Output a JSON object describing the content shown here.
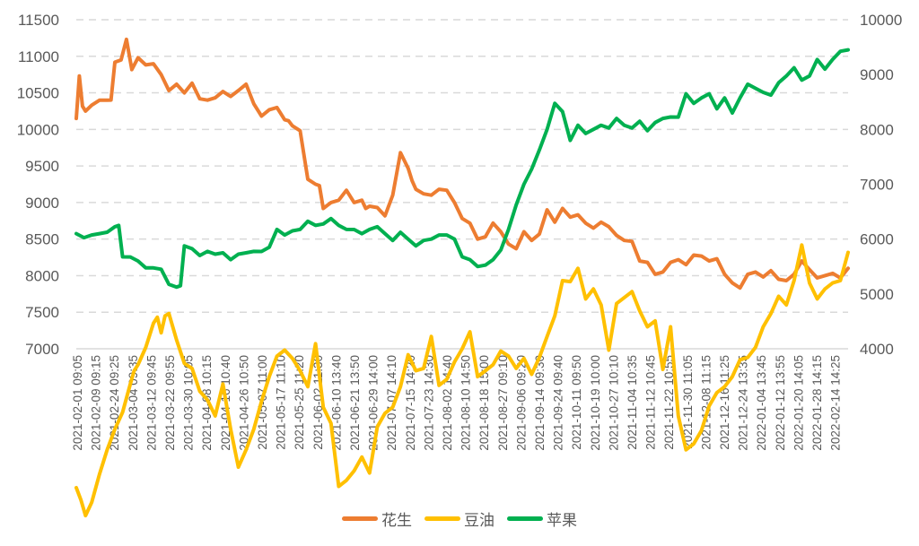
{
  "chart_data": {
    "type": "line",
    "title": "",
    "xlabel": "",
    "ylabel": "",
    "y2label": "",
    "grid": true,
    "legend_position": "bottom",
    "left_axis": {
      "min": 7000,
      "max": 11500,
      "step": 500,
      "ticks": [
        "11500",
        "11000",
        "10500",
        "10000",
        "9500",
        "9000",
        "8500",
        "8000",
        "7500",
        "7000"
      ]
    },
    "right_axis": {
      "min": 4000,
      "max": 10000,
      "step": 1000,
      "ticks": [
        "10000",
        "9000",
        "8000",
        "7000",
        "6000",
        "5000",
        "4000"
      ]
    },
    "x_tick_labels": [
      "2021-02-01 09:05",
      "2021-02-09 09:15",
      "2021-02-24 09:25",
      "2021-03-04 09:35",
      "2021-03-12 09:45",
      "2021-03-22 09:55",
      "2021-03-30 10:05",
      "2021-04-08 10:15",
      "2021-04-16 10:40",
      "2021-04-26 10:50",
      "2021-05-07 11:00",
      "2021-05-17 11:10",
      "2021-05-25 11:20",
      "2021-06-02 11:30",
      "2021-06-10 13:40",
      "2021-06-21 13:50",
      "2021-06-29 14:00",
      "2021-07-07 14:10",
      "2021-07-15 14:20",
      "2021-07-23 14:30",
      "2021-08-02 14:40",
      "2021-08-10 14:50",
      "2021-08-18 15:00",
      "2021-08-27 09:10",
      "2021-09-06 09:20",
      "2021-09-14 09:30",
      "2021-09-24 09:40",
      "2021-10-11 09:50",
      "2021-10-19 10:00",
      "2021-10-27 10:10",
      "2021-11-04 10:35",
      "2021-11-12 10:45",
      "2021-11-22 10:55",
      "2021-11-30 11:05",
      "2021-12-08 11:15",
      "2021-12-16 11:25",
      "2021-12-24 13:35",
      "2022-01-04 13:45",
      "2022-01-12 13:55",
      "2022-01-20 14:05",
      "2022-01-28 14:15",
      "2022-02-14 14:25"
    ],
    "series": [
      {
        "name": "花生",
        "axis": "left",
        "color": "#ED7D31",
        "x": [
          0,
          0.004,
          0.008,
          0.012,
          0.02,
          0.03,
          0.04,
          0.045,
          0.05,
          0.058,
          0.065,
          0.072,
          0.08,
          0.09,
          0.1,
          0.11,
          0.12,
          0.13,
          0.14,
          0.15,
          0.16,
          0.17,
          0.18,
          0.19,
          0.2,
          0.21,
          0.22,
          0.23,
          0.24,
          0.25,
          0.26,
          0.27,
          0.275,
          0.28,
          0.29,
          0.3,
          0.31,
          0.315,
          0.32,
          0.33,
          0.34,
          0.35,
          0.36,
          0.37,
          0.375,
          0.38,
          0.39,
          0.4,
          0.41,
          0.42,
          0.43,
          0.435,
          0.44,
          0.45,
          0.46,
          0.47,
          0.48,
          0.49,
          0.5,
          0.51,
          0.52,
          0.53,
          0.54,
          0.55,
          0.56,
          0.57,
          0.58,
          0.59,
          0.6,
          0.61,
          0.62,
          0.63,
          0.64,
          0.65,
          0.66,
          0.67,
          0.68,
          0.69,
          0.7,
          0.71,
          0.72,
          0.73,
          0.74,
          0.75,
          0.76,
          0.77,
          0.78,
          0.79,
          0.8,
          0.81,
          0.82,
          0.83,
          0.84,
          0.85,
          0.86,
          0.87,
          0.88,
          0.89,
          0.9,
          0.91,
          0.92,
          0.93,
          0.94,
          0.95,
          0.96,
          0.97,
          0.98,
          0.99,
          1.0
        ],
        "values": [
          10150,
          10750,
          10300,
          10250,
          10350,
          10380,
          10400,
          10420,
          10900,
          10950,
          11250,
          10800,
          10980,
          10900,
          10880,
          10750,
          10550,
          10600,
          10500,
          10650,
          10400,
          10400,
          10450,
          10500,
          10450,
          10550,
          10600,
          10350,
          10200,
          10250,
          10300,
          10150,
          10100,
          10050,
          10000,
          9300,
          9250,
          9250,
          8900,
          9000,
          9050,
          9150,
          9000,
          9050,
          8900,
          8950,
          8950,
          8800,
          9100,
          9700,
          9450,
          9300,
          9200,
          9100,
          9100,
          9200,
          9150,
          9000,
          8800,
          8700,
          8500,
          8550,
          8700,
          8600,
          8450,
          8350,
          8600,
          8500,
          8550,
          8900,
          8750,
          8900,
          8800,
          8850,
          8700,
          8650,
          8750,
          8650,
          8550,
          8500,
          8450,
          8200,
          8200,
          8000,
          8050,
          8200,
          8200,
          8150,
          8300,
          8250,
          8200,
          8250,
          8000,
          7900,
          7850,
          8000,
          8050,
          8000,
          8050,
          7950,
          7950,
          8000,
          8200,
          8100,
          7950,
          8000,
          8050,
          7950,
          8100
        ]
      },
      {
        "name": "豆油",
        "axis": "left",
        "color": "#FFC000",
        "x": [
          0,
          0.006,
          0.012,
          0.02,
          0.03,
          0.04,
          0.05,
          0.06,
          0.07,
          0.075,
          0.08,
          0.09,
          0.1,
          0.105,
          0.11,
          0.115,
          0.12,
          0.13,
          0.14,
          0.15,
          0.16,
          0.17,
          0.18,
          0.19,
          0.2,
          0.21,
          0.22,
          0.23,
          0.24,
          0.25,
          0.26,
          0.27,
          0.28,
          0.29,
          0.3,
          0.31,
          0.32,
          0.33,
          0.34,
          0.35,
          0.36,
          0.37,
          0.38,
          0.39,
          0.4,
          0.41,
          0.42,
          0.43,
          0.44,
          0.45,
          0.46,
          0.47,
          0.48,
          0.49,
          0.5,
          0.51,
          0.52,
          0.53,
          0.54,
          0.55,
          0.56,
          0.57,
          0.58,
          0.59,
          0.6,
          0.61,
          0.62,
          0.63,
          0.64,
          0.65,
          0.66,
          0.67,
          0.68,
          0.69,
          0.7,
          0.71,
          0.72,
          0.73,
          0.74,
          0.75,
          0.76,
          0.77,
          0.78,
          0.79,
          0.8,
          0.81,
          0.82,
          0.83,
          0.84,
          0.85,
          0.86,
          0.87,
          0.88,
          0.89,
          0.9,
          0.91,
          0.92,
          0.93,
          0.94,
          0.95,
          0.96,
          0.97,
          0.98,
          0.99,
          1.0
        ],
        "values": [
          5100,
          4950,
          4700,
          4900,
          5300,
          5600,
          5900,
          6150,
          6500,
          6700,
          6800,
          7000,
          7350,
          7450,
          7200,
          7450,
          7500,
          7100,
          6800,
          6750,
          6400,
          6300,
          6100,
          6500,
          5900,
          5400,
          5600,
          5900,
          6300,
          6600,
          6900,
          7000,
          6850,
          6700,
          6500,
          7050,
          6200,
          6000,
          5100,
          5200,
          5350,
          5500,
          5300,
          5950,
          6100,
          6200,
          6500,
          6900,
          6700,
          6750,
          7150,
          6500,
          6600,
          6800,
          7000,
          7250,
          6600,
          6700,
          6800,
          6950,
          6900,
          6750,
          6850,
          6650,
          6900,
          7150,
          7450,
          7950,
          7900,
          8100,
          7700,
          7800,
          7600,
          7000,
          7600,
          7700,
          7800,
          7500,
          7300,
          7400,
          6700,
          7300,
          6100,
          5600,
          5700,
          5900,
          6200,
          6400,
          6500,
          6600,
          6850,
          6900,
          7000,
          7300,
          7500,
          7700,
          7600,
          7950,
          8400,
          7900,
          7700,
          7800,
          7900,
          7950,
          8300
        ]
      },
      {
        "name": "苹果",
        "axis": "right",
        "color": "#00B050",
        "x": [
          0,
          0.01,
          0.02,
          0.03,
          0.04,
          0.05,
          0.055,
          0.06,
          0.07,
          0.08,
          0.09,
          0.1,
          0.11,
          0.12,
          0.13,
          0.135,
          0.14,
          0.15,
          0.16,
          0.17,
          0.18,
          0.19,
          0.2,
          0.21,
          0.22,
          0.23,
          0.24,
          0.25,
          0.26,
          0.27,
          0.28,
          0.29,
          0.3,
          0.31,
          0.32,
          0.33,
          0.34,
          0.35,
          0.36,
          0.37,
          0.38,
          0.39,
          0.4,
          0.41,
          0.42,
          0.43,
          0.44,
          0.45,
          0.46,
          0.47,
          0.48,
          0.49,
          0.5,
          0.51,
          0.52,
          0.53,
          0.54,
          0.55,
          0.56,
          0.57,
          0.58,
          0.59,
          0.6,
          0.61,
          0.62,
          0.63,
          0.64,
          0.65,
          0.66,
          0.67,
          0.68,
          0.69,
          0.7,
          0.71,
          0.72,
          0.73,
          0.74,
          0.75,
          0.76,
          0.77,
          0.78,
          0.79,
          0.8,
          0.81,
          0.82,
          0.83,
          0.84,
          0.85,
          0.86,
          0.87,
          0.88,
          0.89,
          0.9,
          0.91,
          0.92,
          0.93,
          0.94,
          0.95,
          0.96,
          0.97,
          0.98,
          0.99,
          1.0
        ],
        "values": [
          6100,
          6050,
          6050,
          6100,
          6150,
          6200,
          6250,
          5700,
          5650,
          5600,
          5500,
          5450,
          5450,
          5200,
          5100,
          5150,
          5900,
          5800,
          5700,
          5800,
          5700,
          5750,
          5650,
          5700,
          5750,
          5800,
          5750,
          5850,
          6200,
          6050,
          6150,
          6200,
          6300,
          6250,
          6300,
          6350,
          6250,
          6200,
          6150,
          6100,
          6200,
          6200,
          6100,
          6000,
          6100,
          6000,
          5900,
          5950,
          6000,
          6100,
          6050,
          6000,
          5700,
          5600,
          5500,
          5550,
          5600,
          5800,
          6200,
          6600,
          7000,
          7300,
          7600,
          8000,
          8500,
          8300,
          7800,
          8100,
          7900,
          8000,
          8100,
          8000,
          8200,
          8100,
          8000,
          8150,
          8000,
          8100,
          8200,
          8250,
          8200,
          8650,
          8500,
          8550,
          8650,
          8400,
          8550,
          8300,
          8600,
          8800,
          8750,
          8700,
          8600,
          8850,
          9000,
          9100,
          8900,
          9000,
          9250,
          9100,
          9300,
          9400,
          9450
        ]
      }
    ]
  },
  "legend": {
    "items": [
      {
        "label": "花生",
        "color": "#ED7D31"
      },
      {
        "label": "豆油",
        "color": "#FFC000"
      },
      {
        "label": "苹果",
        "color": "#00B050"
      }
    ]
  },
  "style": {
    "grid_color": "#D9D9D9",
    "axis_line_color": "#D9D9D9",
    "text_color": "#595959"
  }
}
